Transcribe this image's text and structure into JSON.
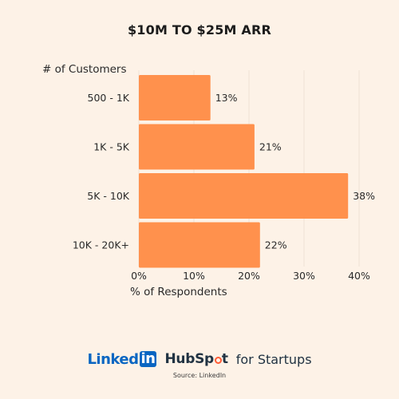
{
  "colors": {
    "background": "#fdf2e7",
    "bar": "#ff914d",
    "gridline": "#eee3d6",
    "text": "#2a2a2a",
    "linkedin_blue": "#0a66c2",
    "hubspot_navy": "#213343",
    "hubspot_orange": "#ff5c35"
  },
  "branding": {
    "linkedin_word": "Linked",
    "linkedin_in": "in",
    "hubspot_a": "HubSp",
    "hubspot_b": "t",
    "startups": "for Startups",
    "source": "Source: LinkedIn"
  },
  "chart_data": {
    "type": "bar",
    "orientation": "horizontal",
    "title": "$10M TO $25M ARR",
    "ylabel": "# of Customers",
    "xlabel": "% of Respondents",
    "categories": [
      "500 - 1K",
      "1K - 5K",
      "5K - 10K",
      "10K - 20K+"
    ],
    "values": [
      13,
      21,
      38,
      22
    ],
    "value_labels": [
      "13%",
      "21%",
      "38%",
      "22%"
    ],
    "xlim": [
      0,
      40
    ],
    "xticks": [
      0,
      10,
      20,
      30,
      40
    ],
    "xtick_labels": [
      "0%",
      "10%",
      "20%",
      "30%",
      "40%"
    ],
    "grid": "vertical"
  }
}
